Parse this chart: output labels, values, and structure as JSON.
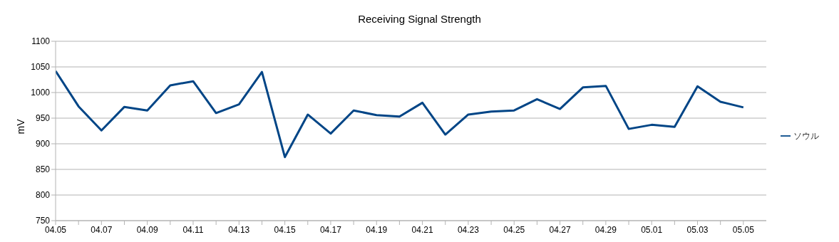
{
  "chart_data": {
    "type": "line",
    "title": "Receiving Signal Strength",
    "ylabel": "mV",
    "categories": [
      "04.05",
      null,
      "04.07",
      null,
      "04.09",
      null,
      "04.11",
      null,
      "04.13",
      null,
      "04.15",
      null,
      "04.17",
      null,
      "04.19",
      null,
      "04.21",
      null,
      "04.23",
      null,
      "04.25",
      null,
      "04.27",
      null,
      "04.29",
      null,
      "05.01",
      null,
      "05.03",
      null,
      "05.05"
    ],
    "series": [
      {
        "name": "ソウル",
        "color": "#004586",
        "values": [
          1042,
          973,
          926,
          972,
          965,
          1014,
          1022,
          960,
          977,
          1040,
          874,
          957,
          920,
          965,
          956,
          953,
          980,
          918,
          957,
          963,
          965,
          987,
          968,
          1010,
          1013,
          929,
          937,
          933,
          1012,
          982,
          971
        ]
      }
    ],
    "ylim": [
      750,
      1100
    ],
    "yticks": [
      750,
      800,
      850,
      900,
      950,
      1000,
      1050,
      1100
    ],
    "grid": "y",
    "legend": "right",
    "marker": "none",
    "line_style": "solid"
  }
}
